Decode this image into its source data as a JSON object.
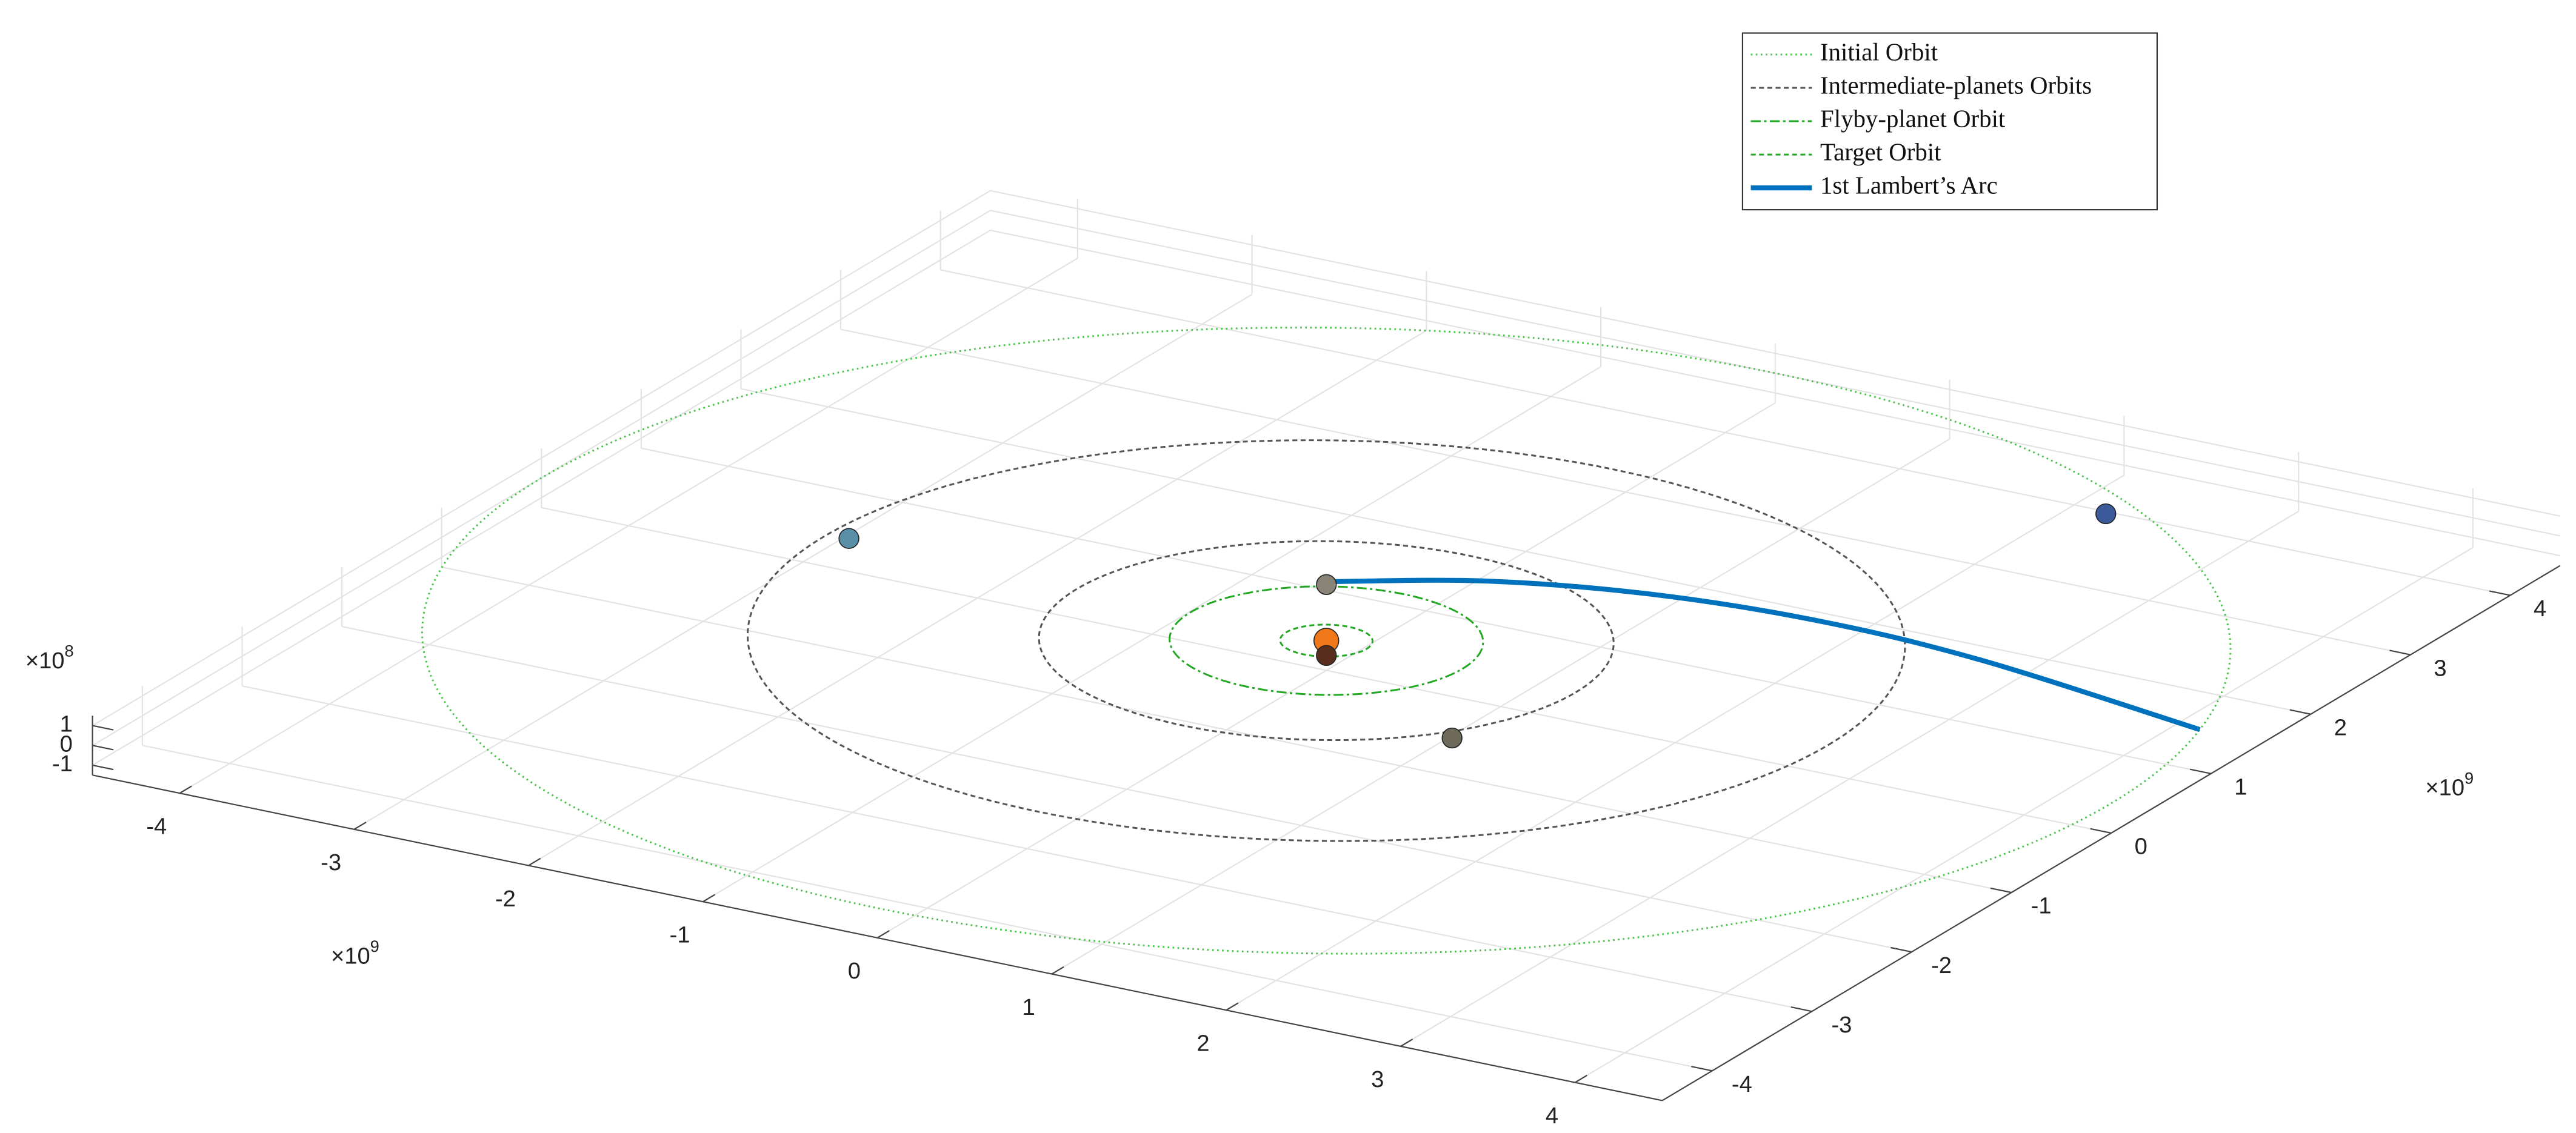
{
  "chart_data": {
    "type": "orbit3d",
    "xlim": [
      -4.5,
      4.5
    ],
    "ylim": [
      -4.5,
      4.5
    ],
    "zlim": [
      -1.5,
      1.5
    ],
    "xticks": [
      -4,
      -3,
      -2,
      -1,
      0,
      1,
      2,
      3,
      4
    ],
    "yticks": [
      -4,
      -3,
      -2,
      -1,
      0,
      1,
      2,
      3,
      4
    ],
    "zticks": [
      -1,
      0,
      1
    ],
    "x_exponent": {
      "base": "×10",
      "power": "9"
    },
    "y_exponent": {
      "base": "×10",
      "power": "9"
    },
    "z_exponent": {
      "base": "×10",
      "power": "8"
    },
    "grid": true,
    "legend": "top-right",
    "series": [
      {
        "name": "Initial Orbit",
        "color": "#4cc34c",
        "linestyle": ":",
        "radii": [
          4.5
        ]
      },
      {
        "name": "Intermediate-planets Orbits",
        "color": "#555555",
        "linestyle": "--",
        "radii": [
          2.88,
          1.43
        ]
      },
      {
        "name": "Flyby-planet Orbit",
        "color": "#22a822",
        "linestyle": "-.",
        "radii": [
          0.78
        ]
      },
      {
        "name": "Target Orbit",
        "color": "#22a822",
        "linestyle": "--",
        "radii": [
          0.23
        ]
      },
      {
        "name": "1st Lambert’s Arc",
        "color": "#0072bd",
        "linestyle": "-",
        "x": [
          -0.4,
          0.26,
          1.05,
          1.95,
          2.93,
          4.35
        ],
        "y": [
          0.75,
          1.16,
          1.42,
          1.52,
          1.45,
          1.15
        ]
      }
    ],
    "bodies": {
      "x": [
        0,
        0.106,
        -0.4,
        1.23,
        -2.76,
        2.41
      ],
      "y": [
        0,
        -0.185,
        0.7,
        -0.89,
        0.04,
        3.6
      ],
      "colors": [
        "#f07818",
        "#5a2e1e",
        "#8a8478",
        "#6e6a5a",
        "#5a8fa8",
        "#3a5a9a"
      ]
    }
  }
}
